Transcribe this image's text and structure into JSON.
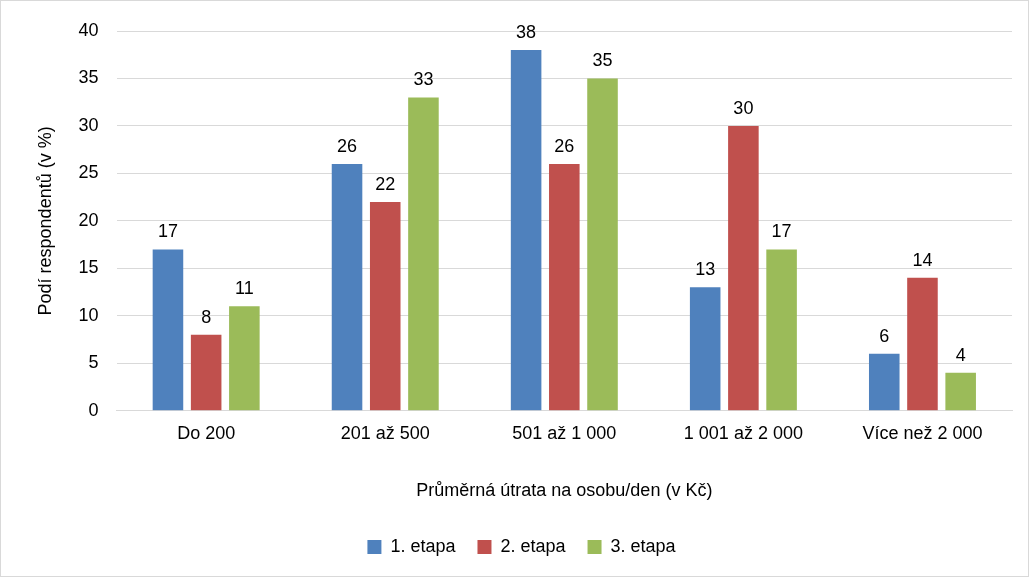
{
  "chart_data": {
    "type": "bar",
    "xlabel": "Průměrná útrata na osobu/den (v Kč)",
    "ylabel": "Podí respondentů (v %)",
    "categories": [
      "Do 200",
      "201 až 500",
      "501 až 1 000",
      "1 001 až 2 000",
      "Více než 2 000"
    ],
    "series": [
      {
        "name": "1. etapa",
        "color": "#4f81bd",
        "values": [
          17,
          26,
          38,
          13,
          6
        ]
      },
      {
        "name": "2. etapa",
        "color": "#c0504d",
        "values": [
          8,
          22,
          26,
          30,
          14
        ]
      },
      {
        "name": "3. etapa",
        "color": "#9bbb59",
        "values": [
          11,
          33,
          35,
          17,
          4
        ]
      }
    ],
    "ylim": [
      0,
      40
    ],
    "yticks": [
      0,
      5,
      10,
      15,
      20,
      25,
      30,
      35,
      40
    ],
    "grid": "y",
    "legend": "bottom",
    "data_labels": true
  }
}
